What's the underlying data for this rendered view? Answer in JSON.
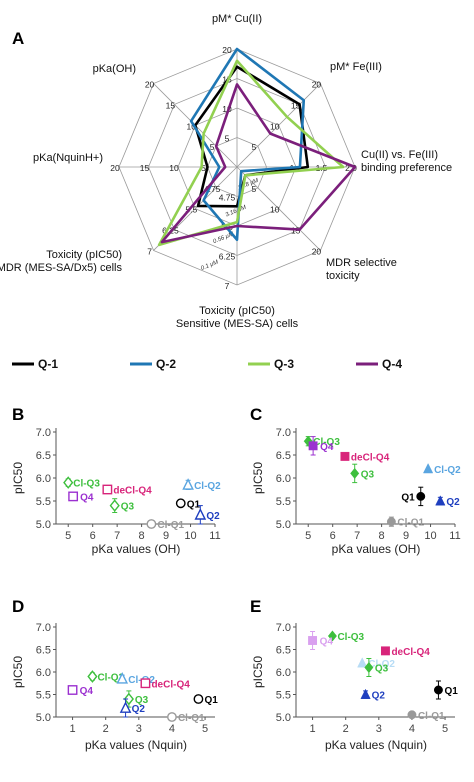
{
  "legend": [
    {
      "name": "Q-1",
      "color": "#000000"
    },
    {
      "name": "Q-2",
      "color": "#1f77b4"
    },
    {
      "name": "Q-3",
      "color": "#92d050"
    },
    {
      "name": "Q-4",
      "color": "#7b1f7b"
    }
  ],
  "chart_data": [
    {
      "panel": "A",
      "type": "radar",
      "axes": [
        {
          "label": "pM* Cu(II)",
          "ticks": [
            "5",
            "10",
            "15",
            "20"
          ],
          "range": [
            0,
            20
          ]
        },
        {
          "label": "pM* Fe(III)",
          "ticks": [
            "5",
            "10",
            "15",
            "20"
          ],
          "range": [
            0,
            20
          ]
        },
        {
          "label": "Cu(II) vs. Fe(III) binding preference",
          "ticks": [
            "1",
            "1.5",
            "2.0"
          ],
          "range": [
            0.5,
            2.0
          ]
        },
        {
          "label": "MDR selective toxicity",
          "ticks": [
            "5",
            "10",
            "15",
            "20"
          ],
          "range": [
            0,
            20
          ]
        },
        {
          "label": "Toxicity (pIC50) Sensitive (MES-SA) cells",
          "ticks": [
            "4.75",
            "5.5",
            "6.25",
            "7"
          ],
          "range": [
            4,
            7
          ]
        },
        {
          "label": "Toxicity (pIC50) MDR (MES-SA/Dx5) cells",
          "ticks": [
            "4.75",
            "5.5",
            "6.25",
            "7"
          ],
          "range": [
            4,
            7
          ]
        },
        {
          "label": "pKa(NquinH+)",
          "ticks": [
            "5",
            "10",
            "15",
            "20"
          ],
          "range": [
            0,
            20
          ]
        },
        {
          "label": "pKa(OH)",
          "ticks": [
            "5",
            "10",
            "15",
            "20"
          ],
          "range": [
            0,
            20
          ]
        }
      ],
      "inner_labels": [
        "17.8 μM",
        "3.16 μM",
        "0.56 μM",
        "0.1 μM"
      ],
      "series": [
        {
          "name": "Q-1",
          "values": [
            17,
            15,
            1.4,
            2,
            5.0,
            5.4,
            5,
            10
          ]
        },
        {
          "name": "Q-2",
          "values": [
            20,
            16,
            1.3,
            1,
            5.85,
            5.2,
            3,
            11
          ]
        },
        {
          "name": "Q-3",
          "values": [
            18,
            12,
            1.85,
            2,
            5.4,
            6.8,
            6,
            8
          ]
        },
        {
          "name": "Q-4",
          "values": [
            14,
            8,
            2.0,
            15,
            5.5,
            6.7,
            2,
            5
          ]
        }
      ]
    },
    {
      "panel": "B",
      "type": "scatter",
      "xlabel": "pKa values (OH)",
      "ylabel": "pIC50",
      "xlim": [
        4.5,
        11
      ],
      "ylim": [
        5.0,
        7.0
      ],
      "xticks": [
        5,
        6,
        7,
        8,
        9,
        10,
        11
      ],
      "yticks": [
        "5.0",
        "5.5",
        "6.0",
        "6.5",
        "7.0"
      ],
      "points": [
        {
          "label": "Cl-Q3",
          "x": 5.0,
          "y": 5.9,
          "err": 0.08,
          "color": "#3dbf3d",
          "marker": "diamond-open"
        },
        {
          "label": "Q4",
          "x": 5.2,
          "y": 5.6,
          "err": 0.06,
          "color": "#9b30d0",
          "marker": "square-open"
        },
        {
          "label": "deCl-Q4",
          "x": 6.6,
          "y": 5.75,
          "err": 0.0,
          "color": "#d8247a",
          "marker": "square-open"
        },
        {
          "label": "Q3",
          "x": 6.9,
          "y": 5.4,
          "err": 0.15,
          "color": "#3dbf3d",
          "marker": "diamond-open"
        },
        {
          "label": "Q1",
          "x": 9.6,
          "y": 5.45,
          "err": 0.08,
          "color": "#000000",
          "marker": "circle-open"
        },
        {
          "label": "Cl-Q1",
          "x": 8.4,
          "y": 5.0,
          "err": 0.06,
          "color": "#999999",
          "marker": "circle-open"
        },
        {
          "label": "Cl-Q2",
          "x": 9.9,
          "y": 5.85,
          "err": 0.1,
          "color": "#5aa5e0",
          "marker": "triangle-open"
        },
        {
          "label": "Q2",
          "x": 10.4,
          "y": 5.2,
          "err": 0.2,
          "color": "#1f3fbf",
          "marker": "triangle-open"
        }
      ]
    },
    {
      "panel": "C",
      "type": "scatter",
      "xlabel": "pKa values (OH)",
      "ylabel": "pIC50",
      "xlim": [
        4.5,
        11
      ],
      "ylim": [
        5.0,
        7.0
      ],
      "xticks": [
        5,
        6,
        7,
        8,
        9,
        10,
        11
      ],
      "yticks": [
        "5.0",
        "5.5",
        "6.0",
        "6.5",
        "7.0"
      ],
      "points": [
        {
          "label": "Cl-Q3",
          "x": 5.0,
          "y": 6.8,
          "err": 0.1,
          "color": "#3dbf3d",
          "marker": "diamond"
        },
        {
          "label": "Q4",
          "x": 5.2,
          "y": 6.7,
          "err": 0.2,
          "color": "#9b30d0",
          "marker": "square"
        },
        {
          "label": "deCl-Q4",
          "x": 6.5,
          "y": 6.47,
          "err": 0.0,
          "color": "#d8247a",
          "marker": "square"
        },
        {
          "label": "Q3",
          "x": 6.9,
          "y": 6.1,
          "err": 0.2,
          "color": "#3dbf3d",
          "marker": "diamond"
        },
        {
          "label": "Cl-Q2",
          "x": 9.9,
          "y": 6.2,
          "err": 0.0,
          "color": "#5aa5e0",
          "marker": "triangle"
        },
        {
          "label": "Q1",
          "x": 9.6,
          "y": 5.6,
          "err": 0.2,
          "color": "#000000",
          "marker": "circle"
        },
        {
          "label": "Q2",
          "x": 10.4,
          "y": 5.5,
          "err": 0.08,
          "color": "#1f3fbf",
          "marker": "triangle"
        },
        {
          "label": "Cl-Q1",
          "x": 8.4,
          "y": 5.05,
          "err": 0.1,
          "color": "#999999",
          "marker": "circle"
        }
      ]
    },
    {
      "panel": "D",
      "type": "scatter",
      "xlabel": "pKa values (Nquin)",
      "ylabel": "pIC50",
      "xlim": [
        0.5,
        5.3
      ],
      "ylim": [
        5.0,
        7.0
      ],
      "xticks": [
        1,
        2,
        3,
        4,
        5
      ],
      "yticks": [
        "5.0",
        "5.5",
        "6.0",
        "6.5",
        "7.0"
      ],
      "points": [
        {
          "label": "Q4",
          "x": 1.0,
          "y": 5.6,
          "err": 0.06,
          "color": "#9b30d0",
          "marker": "square-open"
        },
        {
          "label": "Cl-Q3",
          "x": 1.6,
          "y": 5.9,
          "err": 0.08,
          "color": "#3dbf3d",
          "marker": "diamond-open"
        },
        {
          "label": "Cl-Q2",
          "x": 2.5,
          "y": 5.85,
          "err": 0.08,
          "color": "#5aa5e0",
          "marker": "triangle-open"
        },
        {
          "label": "deCl-Q4",
          "x": 3.2,
          "y": 5.75,
          "err": 0.0,
          "color": "#d8247a",
          "marker": "square-open"
        },
        {
          "label": "Q3",
          "x": 2.7,
          "y": 5.4,
          "err": 0.18,
          "color": "#3dbf3d",
          "marker": "diamond-open"
        },
        {
          "label": "Q2",
          "x": 2.6,
          "y": 5.2,
          "err": 0.2,
          "color": "#1f3fbf",
          "marker": "triangle-open"
        },
        {
          "label": "Q1",
          "x": 4.8,
          "y": 5.4,
          "err": 0.08,
          "color": "#000000",
          "marker": "circle-open"
        },
        {
          "label": "Cl-Q1",
          "x": 4.0,
          "y": 5.0,
          "err": 0.06,
          "color": "#999999",
          "marker": "circle-open"
        }
      ]
    },
    {
      "panel": "E",
      "type": "scatter",
      "xlabel": "pKa values (Nquin)",
      "ylabel": "pIC50",
      "xlim": [
        0.5,
        5.3
      ],
      "ylim": [
        5.0,
        7.0
      ],
      "xticks": [
        1,
        2,
        3,
        4,
        5
      ],
      "yticks": [
        "5.0",
        "5.5",
        "6.0",
        "6.5",
        "7.0"
      ],
      "points": [
        {
          "label": "Cl-Q3",
          "x": 1.6,
          "y": 6.8,
          "err": 0.0,
          "color": "#3dbf3d",
          "marker": "diamond"
        },
        {
          "label": "Q4",
          "x": 1.0,
          "y": 6.7,
          "err": 0.2,
          "color": "#d9a0ef",
          "marker": "square"
        },
        {
          "label": "deCl-Q4",
          "x": 3.2,
          "y": 6.47,
          "err": 0.0,
          "color": "#d8247a",
          "marker": "square"
        },
        {
          "label": "Cl-Q2",
          "x": 2.5,
          "y": 6.2,
          "err": 0.0,
          "color": "#b7dcf5",
          "marker": "triangle"
        },
        {
          "label": "Q3",
          "x": 2.7,
          "y": 6.1,
          "err": 0.2,
          "color": "#3dbf3d",
          "marker": "diamond"
        },
        {
          "label": "Q2",
          "x": 2.6,
          "y": 5.5,
          "err": 0.08,
          "color": "#1f3fbf",
          "marker": "triangle"
        },
        {
          "label": "Q1",
          "x": 4.8,
          "y": 5.6,
          "err": 0.2,
          "color": "#000000",
          "marker": "circle"
        },
        {
          "label": "Cl-Q1",
          "x": 4.0,
          "y": 5.05,
          "err": 0.0,
          "color": "#999999",
          "marker": "circle"
        }
      ]
    }
  ]
}
